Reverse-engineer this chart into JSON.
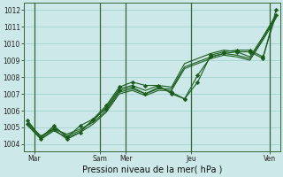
{
  "xlabel": "Pression niveau de la mer( hPa )",
  "bg_color": "#cce8e8",
  "grid_color": "#99cccc",
  "line_color": "#1a5c1a",
  "vline_color": "#336633",
  "ylim": [
    1003.6,
    1012.4
  ],
  "yticks": [
    1004,
    1005,
    1006,
    1007,
    1008,
    1009,
    1010,
    1011,
    1012
  ],
  "xlim": [
    -0.3,
    19.3
  ],
  "xtick_positions": [
    0.5,
    5.5,
    7.5,
    12.5,
    18.5
  ],
  "xtick_labels": [
    "Mar",
    "Sam",
    "Mer",
    "Jeu",
    "Ven"
  ],
  "vline_positions": [
    0.5,
    5.5,
    7.5,
    12.5,
    18.5
  ],
  "x": [
    0,
    1,
    2,
    3,
    4,
    5,
    6,
    7,
    8,
    9,
    10,
    11,
    12,
    13,
    14,
    15,
    16,
    17,
    18,
    19
  ],
  "series_no_marker": [
    [
      1005.3,
      1004.4,
      1005.0,
      1004.5,
      1004.8,
      1005.4,
      1006.2,
      1007.3,
      1007.5,
      1007.2,
      1007.5,
      1007.4,
      1008.8,
      1009.1,
      1009.4,
      1009.6,
      1009.5,
      1009.2,
      1010.4,
      1011.7
    ],
    [
      1005.2,
      1004.5,
      1004.9,
      1004.6,
      1004.9,
      1005.3,
      1006.0,
      1007.1,
      1007.3,
      1007.0,
      1007.3,
      1007.3,
      1008.6,
      1008.9,
      1009.2,
      1009.4,
      1009.3,
      1009.1,
      1010.3,
      1011.6
    ],
    [
      1005.1,
      1004.3,
      1004.8,
      1004.4,
      1004.7,
      1005.2,
      1005.9,
      1007.0,
      1007.2,
      1006.9,
      1007.2,
      1007.2,
      1008.5,
      1008.8,
      1009.1,
      1009.3,
      1009.2,
      1009.0,
      1010.2,
      1011.5
    ]
  ],
  "series_with_marker": [
    [
      1005.4,
      1004.4,
      1005.1,
      1004.4,
      1005.1,
      1005.5,
      1006.3,
      1007.4,
      1007.7,
      1007.5,
      1007.5,
      1007.0,
      1006.7,
      1007.7,
      1009.3,
      1009.5,
      1009.6,
      1009.6,
      1009.2,
      1011.7
    ],
    [
      1005.2,
      1004.3,
      1004.9,
      1004.3,
      1004.7,
      1005.5,
      1006.1,
      1007.2,
      1007.4,
      1007.0,
      1007.4,
      1007.1,
      1006.7,
      1008.1,
      1009.2,
      1009.4,
      1009.5,
      1009.5,
      1009.1,
      1012.0
    ]
  ],
  "marker": "D",
  "marker_size": 2.2,
  "linewidth": 0.8,
  "tick_fontsize": 5.5,
  "xlabel_fontsize": 7.0,
  "figsize": [
    3.2,
    2.0
  ],
  "dpi": 100
}
